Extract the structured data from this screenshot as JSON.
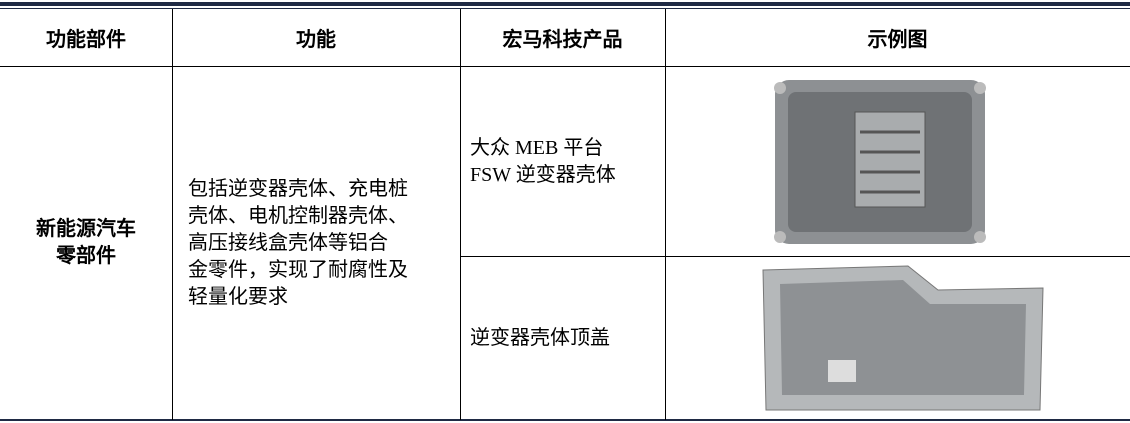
{
  "table": {
    "header": [
      "功能部件",
      "功能",
      "宏马科技产品",
      "示例图"
    ],
    "component": [
      "新能源汽车",
      "零部件"
    ],
    "function": [
      "包括逆变器壳体、充电桩",
      "壳体、电机控制器壳体、",
      "高压接线盒壳体等铝合",
      "金零件，实现了耐腐性及",
      "轻量化要求"
    ],
    "products": [
      [
        "大众 MEB 平台",
        "FSW 逆变器壳体"
      ],
      [
        "逆变器壳体顶盖"
      ]
    ]
  }
}
